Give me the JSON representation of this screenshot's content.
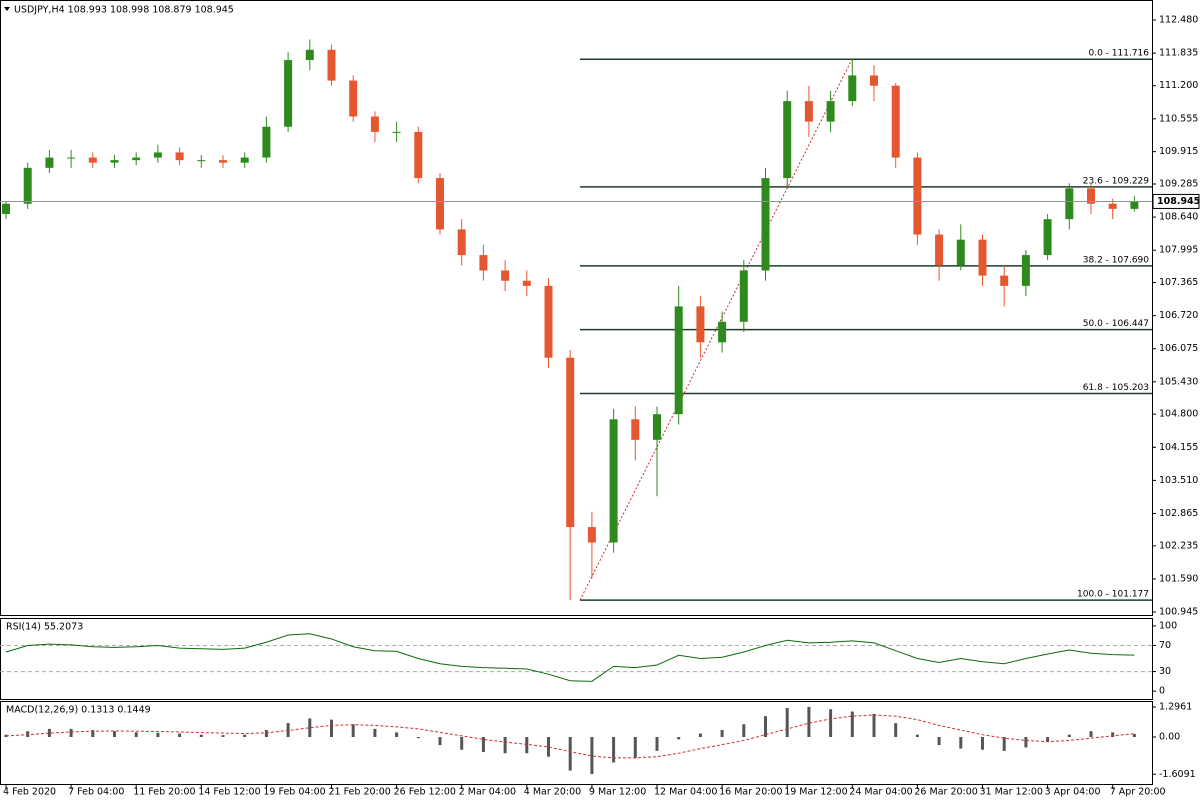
{
  "chart_data": [
    {
      "type": "candlestick",
      "title": "USDJPY,H4 108.993 108.998 108.879 108.945",
      "categories": [
        "4 Feb 2020",
        null,
        null,
        "7 Feb 04:00",
        null,
        null,
        "11 Feb 20:00",
        null,
        null,
        "14 Feb 12:00",
        null,
        null,
        "19 Feb 04:00",
        null,
        null,
        "21 Feb 20:00",
        null,
        null,
        "26 Feb 12:00",
        null,
        null,
        "2 Mar 04:00",
        null,
        null,
        "4 Mar 20:00",
        null,
        null,
        "9 Mar 12:00",
        null,
        null,
        "12 Mar 04:00",
        null,
        null,
        "16 Mar 20:00",
        null,
        null,
        "19 Mar 12:00",
        null,
        null,
        "24 Mar 04:00",
        null,
        null,
        "26 Mar 20:00",
        null,
        null,
        "31 Mar 12:00",
        null,
        null,
        "3 Apr 04:00",
        null,
        null,
        "7 Apr 20:00",
        null
      ],
      "open": [
        108.7,
        108.9,
        109.6,
        109.8,
        109.8,
        109.7,
        109.75,
        109.8,
        109.9,
        109.75,
        109.75,
        109.7,
        109.8,
        110.4,
        111.7,
        111.9,
        111.3,
        110.6,
        110.3,
        110.3,
        109.4,
        108.4,
        107.9,
        107.6,
        107.4,
        107.3,
        105.9,
        102.6,
        102.3,
        104.7,
        104.3,
        104.8,
        106.9,
        106.2,
        106.6,
        107.6,
        109.4,
        110.9,
        110.5,
        110.9,
        111.4,
        111.2,
        109.8,
        108.3,
        107.7,
        108.2,
        107.5,
        107.3,
        107.9,
        108.6,
        109.2,
        108.9,
        108.8
      ],
      "high": [
        108.95,
        109.7,
        109.95,
        109.95,
        109.9,
        109.85,
        109.9,
        110.05,
        110.0,
        109.85,
        109.85,
        109.9,
        110.6,
        111.85,
        112.1,
        112.0,
        111.4,
        110.7,
        110.5,
        110.4,
        109.5,
        108.6,
        108.1,
        107.8,
        107.6,
        107.45,
        106.05,
        102.9,
        104.9,
        104.95,
        104.95,
        107.3,
        107.1,
        106.8,
        107.8,
        109.6,
        111.1,
        111.2,
        111.1,
        111.716,
        111.6,
        111.25,
        109.9,
        108.4,
        108.5,
        108.3,
        107.7,
        108.0,
        108.7,
        109.3,
        109.3,
        109.0,
        109.05
      ],
      "low": [
        108.6,
        108.8,
        109.5,
        109.6,
        109.6,
        109.6,
        109.65,
        109.7,
        109.65,
        109.6,
        109.6,
        109.6,
        109.7,
        110.3,
        111.5,
        111.2,
        110.5,
        110.1,
        110.1,
        109.3,
        108.3,
        107.7,
        107.4,
        107.2,
        107.1,
        105.7,
        101.177,
        101.6,
        102.1,
        103.9,
        103.2,
        104.6,
        105.9,
        106.0,
        106.4,
        107.4,
        109.2,
        110.2,
        110.3,
        110.8,
        110.9,
        109.6,
        108.1,
        107.4,
        107.6,
        107.3,
        106.9,
        107.1,
        107.8,
        108.4,
        108.7,
        108.6,
        108.75
      ],
      "close": [
        108.9,
        109.6,
        109.8,
        109.8,
        109.7,
        109.75,
        109.8,
        109.9,
        109.75,
        109.75,
        109.7,
        109.8,
        110.4,
        111.7,
        111.9,
        111.3,
        110.6,
        110.3,
        110.3,
        109.4,
        108.4,
        107.9,
        107.6,
        107.4,
        107.3,
        105.9,
        102.6,
        102.3,
        104.7,
        104.3,
        104.8,
        106.9,
        106.2,
        106.6,
        107.6,
        109.4,
        110.9,
        110.5,
        110.9,
        111.4,
        111.2,
        109.8,
        108.3,
        107.7,
        108.2,
        107.5,
        107.3,
        107.9,
        108.6,
        109.2,
        108.9,
        108.8,
        108.945
      ],
      "up_color": "#2f8a1e",
      "down_color": "#e5582f",
      "ylim": [
        100.887,
        112.87
      ],
      "yticks": [
        {
          "value": 112.48,
          "label": "112.480"
        },
        {
          "value": 111.835,
          "label": "111.835"
        },
        {
          "value": 111.2,
          "label": "111.200"
        },
        {
          "value": 110.555,
          "label": "110.555"
        },
        {
          "value": 109.915,
          "label": "109.915"
        },
        {
          "value": 109.285,
          "label": "109.285"
        },
        {
          "value": 108.64,
          "label": "108.640"
        },
        {
          "value": 107.995,
          "label": "107.995"
        },
        {
          "value": 107.365,
          "label": "107.365"
        },
        {
          "value": 106.72,
          "label": "106.720"
        },
        {
          "value": 106.075,
          "label": "106.075"
        },
        {
          "value": 105.43,
          "label": "105.430"
        },
        {
          "value": 104.8,
          "label": "104.800"
        },
        {
          "value": 104.155,
          "label": "104.155"
        },
        {
          "value": 103.51,
          "label": "103.510"
        },
        {
          "value": 102.865,
          "label": "102.865"
        },
        {
          "value": 102.235,
          "label": "102.235"
        },
        {
          "value": 101.59,
          "label": "101.590"
        },
        {
          "value": 100.945,
          "label": "100.945"
        }
      ],
      "last_price": 108.945,
      "fibonacci": [
        {
          "value": 111.716,
          "label": "0.0 - 111.716"
        },
        {
          "value": 109.229,
          "label": "23.6 - 109.229"
        },
        {
          "value": 107.69,
          "label": "38.2 - 107.690"
        },
        {
          "value": 106.447,
          "label": "50.0 - 106.447"
        },
        {
          "value": 105.203,
          "label": "61.8 - 105.203"
        },
        {
          "value": 101.177,
          "label": "100.0 - 101.177"
        }
      ],
      "fib_color": "#1f3d2a"
    },
    {
      "type": "line",
      "title": "RSI(14) 55.2073",
      "color": "#0a6b0a",
      "values": [
        60,
        70,
        72,
        71,
        68,
        67,
        68,
        70,
        66,
        65,
        64,
        66,
        75,
        86,
        88,
        80,
        68,
        62,
        61,
        50,
        42,
        38,
        36,
        35,
        34,
        26,
        16,
        15,
        38,
        36,
        40,
        55,
        50,
        52,
        60,
        70,
        78,
        74,
        75,
        77,
        74,
        62,
        50,
        44,
        50,
        45,
        42,
        50,
        57,
        63,
        58,
        56,
        55.2073
      ],
      "ylim": [
        -13.6,
        110.6
      ],
      "yticks": [
        100,
        70,
        30,
        0
      ],
      "levels": [
        70,
        30
      ]
    },
    {
      "type": "macd",
      "title": "MACD(12,26,9) 0.1313 0.1449",
      "color": "#555555",
      "signal_color": "#d03030",
      "values": [
        0.1,
        0.25,
        0.35,
        0.35,
        0.3,
        0.25,
        0.2,
        0.18,
        0.15,
        0.1,
        0.08,
        0.1,
        0.3,
        0.6,
        0.8,
        0.75,
        0.55,
        0.35,
        0.2,
        -0.05,
        -0.35,
        -0.55,
        -0.65,
        -0.7,
        -0.7,
        -0.85,
        -1.45,
        -1.6,
        -1.1,
        -0.9,
        -0.6,
        -0.1,
        0.15,
        0.3,
        0.55,
        0.9,
        1.25,
        1.3,
        1.2,
        1.1,
        1.0,
        0.6,
        0.1,
        -0.35,
        -0.5,
        -0.55,
        -0.6,
        -0.45,
        -0.2,
        0.1,
        0.25,
        0.2,
        0.1313
      ],
      "signal": [
        0.05,
        0.1,
        0.17,
        0.22,
        0.25,
        0.26,
        0.25,
        0.24,
        0.22,
        0.19,
        0.17,
        0.15,
        0.18,
        0.28,
        0.4,
        0.5,
        0.53,
        0.5,
        0.44,
        0.35,
        0.2,
        0.05,
        -0.1,
        -0.22,
        -0.32,
        -0.43,
        -0.63,
        -0.82,
        -0.9,
        -0.9,
        -0.85,
        -0.7,
        -0.5,
        -0.33,
        -0.15,
        0.1,
        0.35,
        0.6,
        0.78,
        0.9,
        0.95,
        0.9,
        0.75,
        0.5,
        0.3,
        0.1,
        -0.05,
        -0.15,
        -0.2,
        -0.15,
        -0.05,
        0.05,
        0.1449
      ],
      "ylim": [
        -2.073,
        1.512
      ],
      "yticks": [
        1.2961,
        {
          "value": 0,
          "label": "0.00"
        },
        -1.6091
      ]
    }
  ]
}
